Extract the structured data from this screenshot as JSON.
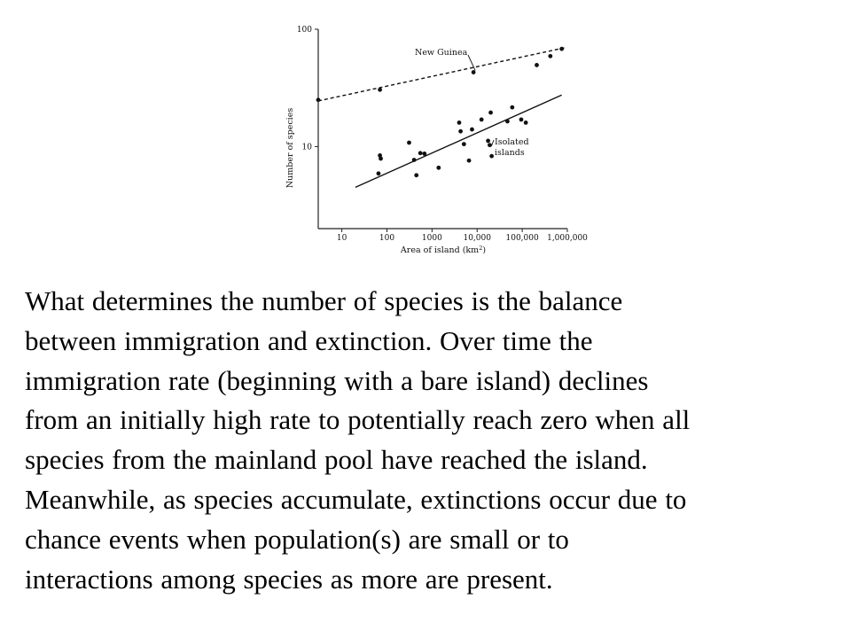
{
  "chart_data": {
    "type": "scatter",
    "xscale": "log",
    "yscale": "log",
    "xlim": [
      3,
      1000000
    ],
    "ylim": [
      2,
      100
    ],
    "x_ticks": [
      10,
      100,
      1000,
      10000,
      100000,
      1000000
    ],
    "x_tick_labels": [
      "10",
      "100",
      "1000",
      "10,000",
      "100,000",
      "1,000,000"
    ],
    "y_ticks": [
      10,
      100
    ],
    "y_tick_labels": [
      "10",
      "100"
    ],
    "xlabel": "Area of island (km",
    "xlabel_superscript": "2",
    "xlabel_suffix": ")",
    "ylabel": "Number of species",
    "grid": false,
    "series": [
      {
        "name": "New Guinea",
        "marker": "dot",
        "line": "dashed",
        "points": [
          [
            3,
            25
          ],
          [
            70,
            30.5
          ],
          [
            8300,
            43
          ],
          [
            210000,
            49.5
          ],
          [
            420000,
            59
          ],
          [
            750000,
            68
          ]
        ],
        "fit": [
          [
            3,
            24.5
          ],
          [
            950000,
            70
          ]
        ]
      },
      {
        "name": "Isolated islands",
        "marker": "dot",
        "line": "solid",
        "points": [
          [
            65,
            5.9
          ],
          [
            70,
            8.4
          ],
          [
            73,
            7.9
          ],
          [
            310,
            10.8
          ],
          [
            400,
            7.7
          ],
          [
            450,
            5.7
          ],
          [
            550,
            8.8
          ],
          [
            680,
            8.7
          ],
          [
            1400,
            6.6
          ],
          [
            4000,
            16
          ],
          [
            4300,
            13.5
          ],
          [
            5100,
            10.5
          ],
          [
            6600,
            7.6
          ],
          [
            7700,
            14
          ],
          [
            12500,
            17
          ],
          [
            17500,
            11.2
          ],
          [
            19000,
            10.3
          ],
          [
            20000,
            19.5
          ],
          [
            21000,
            8.3
          ],
          [
            47000,
            16.4
          ],
          [
            60000,
            21.6
          ],
          [
            95000,
            17
          ],
          [
            120000,
            16
          ]
        ],
        "fit": [
          [
            20,
            4.5
          ],
          [
            750000,
            27.5
          ]
        ]
      }
    ],
    "annotations": [
      {
        "text": "New Guinea",
        "target_series": "New Guinea"
      },
      {
        "text": "Isolated islands",
        "lines": [
          "Isolated",
          "islands"
        ],
        "target_series": "Isolated islands"
      }
    ]
  },
  "body": {
    "lines": [
      "What determines the number of species is the balance",
      "between immigration and extinction. Over time the",
      "immigration rate (beginning with a bare island) declines",
      "from an initially high rate to potentially reach zero when all",
      "species from the mainland pool have reached the island.",
      "Meanwhile, as species accumulate, extinctions occur due to",
      "chance events when population(s) are small or to",
      "interactions among species as more are present."
    ]
  }
}
